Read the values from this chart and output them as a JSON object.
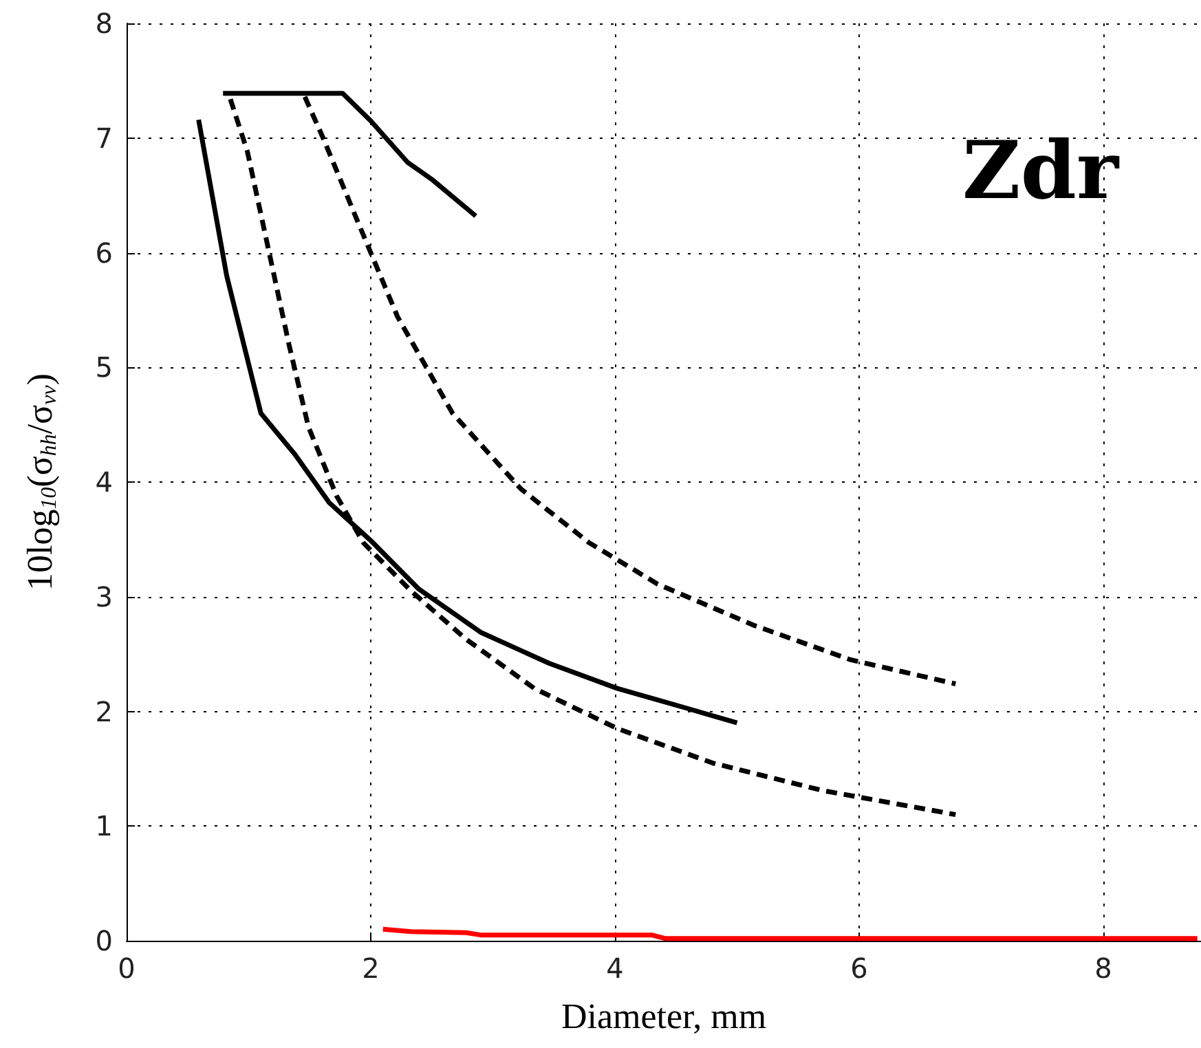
{
  "chart_data": {
    "type": "line",
    "xlabel": "Diameter, mm",
    "ylabel": "10log$_{10}$(σ$_{hh}$/σ$_{vv}$)",
    "annotations": [
      "Zdr"
    ],
    "xlim": [
      0,
      8.8
    ],
    "ylim": [
      0,
      8
    ],
    "xticks": [
      0,
      2,
      4,
      6,
      8
    ],
    "yticks": [
      0,
      1,
      2,
      3,
      4,
      5,
      6,
      7,
      8
    ],
    "grid": true,
    "marker": "none",
    "series": [
      {
        "color": "#000000",
        "line_style": "solid",
        "x": [
          0.59,
          0.82,
          1.1,
          1.38,
          1.66,
          2.0,
          2.39,
          2.9,
          3.46,
          4.02,
          4.58,
          5.0
        ],
        "values": [
          7.16,
          5.8,
          4.6,
          4.24,
          3.82,
          3.49,
          3.07,
          2.69,
          2.42,
          2.2,
          2.03,
          1.9
        ]
      },
      {
        "color": "#000000",
        "line_style": "solid",
        "x": [
          0.79,
          1.77,
          2.0,
          2.3,
          2.5,
          2.86
        ],
        "values": [
          7.39,
          7.39,
          7.15,
          6.79,
          6.64,
          6.32
        ]
      },
      {
        "color": "#000000",
        "line_style": "dashed",
        "x": [
          0.85,
          0.99,
          1.16,
          1.33,
          1.49,
          1.72,
          1.94,
          2.33,
          2.78,
          3.34,
          4.02,
          4.8,
          5.7,
          6.79
        ],
        "values": [
          7.34,
          6.88,
          6.04,
          5.2,
          4.48,
          3.88,
          3.47,
          3.05,
          2.63,
          2.2,
          1.85,
          1.55,
          1.31,
          1.1
        ]
      },
      {
        "color": "#000000",
        "line_style": "dashed",
        "x": [
          1.46,
          1.61,
          1.89,
          2.22,
          2.67,
          3.23,
          3.79,
          4.35,
          5.14,
          5.93,
          6.79
        ],
        "values": [
          7.36,
          7.0,
          6.28,
          5.44,
          4.6,
          3.94,
          3.47,
          3.11,
          2.75,
          2.45,
          2.24
        ]
      },
      {
        "color": "#ff0000",
        "line_style": "solid",
        "x": [
          2.1,
          2.33,
          2.78,
          2.9,
          4.3,
          4.41,
          8.77
        ],
        "values": [
          0.1,
          0.08,
          0.07,
          0.05,
          0.05,
          0.02,
          0.02
        ]
      }
    ]
  }
}
